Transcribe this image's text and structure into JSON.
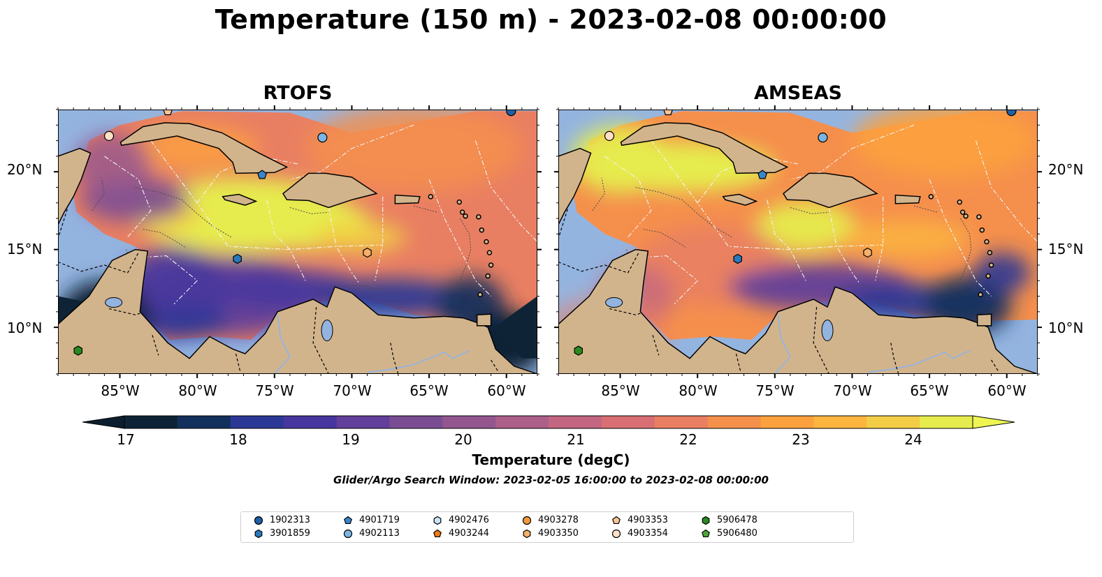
{
  "title": "Temperature (150 m) - 2023-02-08 00:00:00",
  "panels": [
    {
      "id": "rtofs",
      "title": "RTOFS"
    },
    {
      "id": "amseas",
      "title": "AMSEAS"
    }
  ],
  "map_extent": {
    "lon": [
      -89,
      -58
    ],
    "lat": [
      7,
      24
    ]
  },
  "x_ticks": [
    "85°W",
    "80°W",
    "75°W",
    "70°W",
    "65°W",
    "60°W"
  ],
  "y_ticks": [
    "20°N",
    "15°N",
    "10°N"
  ],
  "colorbar": {
    "label": "Temperature (degC)",
    "ticks": [
      "17",
      "18",
      "19",
      "20",
      "21",
      "22",
      "23",
      "24"
    ],
    "range": [
      16.75,
      24.75
    ],
    "extend": "both",
    "colors": [
      "#0e2436",
      "#13305c",
      "#2c3895",
      "#46369e",
      "#613f9a",
      "#7a4d93",
      "#93568f",
      "#ac5f89",
      "#c36681",
      "#d86f74",
      "#e97f62",
      "#f58f4c",
      "#fca13e",
      "#fcb53f",
      "#f2cd45",
      "#e6ec4e"
    ]
  },
  "subtitle": "Glider/Argo Search Window: 2023-02-05 16:00:00 to 2023-02-08 00:00:00",
  "legend": {
    "items": [
      {
        "label": "1902313",
        "marker": "circle",
        "color": "#1f5fa8"
      },
      {
        "label": "3901859",
        "marker": "hexagon",
        "color": "#2b79bd"
      },
      {
        "label": "4901719",
        "marker": "pentagon",
        "color": "#3a86c8"
      },
      {
        "label": "4902113",
        "marker": "circle",
        "color": "#7ab5e3"
      },
      {
        "label": "4902476",
        "marker": "hexagon",
        "color": "#c9e6f7"
      },
      {
        "label": "4903244",
        "marker": "pentagon",
        "color": "#f07a10"
      },
      {
        "label": "4903278",
        "marker": "circle",
        "color": "#f39a3e"
      },
      {
        "label": "4903350",
        "marker": "hexagon",
        "color": "#f7b06a"
      },
      {
        "label": "4903353",
        "marker": "pentagon",
        "color": "#f9c496"
      },
      {
        "label": "4903354",
        "marker": "circle",
        "color": "#fde0c6"
      },
      {
        "label": "5906478",
        "marker": "hexagon",
        "color": "#2a8a22"
      },
      {
        "label": "5906480",
        "marker": "pentagon",
        "color": "#4aa83a"
      }
    ]
  },
  "float_markers": [
    {
      "label": "1902313",
      "lon": -59.7,
      "lat": 23.9
    },
    {
      "label": "4902113",
      "lon": -71.9,
      "lat": 22.2
    },
    {
      "label": "4901719",
      "lon": -75.8,
      "lat": 19.8
    },
    {
      "label": "3901859",
      "lon": -77.4,
      "lat": 14.4
    },
    {
      "label": "4903350",
      "lon": -69.0,
      "lat": 14.8
    },
    {
      "label": "4903354",
      "lon": -85.7,
      "lat": 22.3
    },
    {
      "label": "4903353",
      "lon": -81.9,
      "lat": 23.9
    },
    {
      "label": "5906478",
      "lon": -87.7,
      "lat": 8.5
    }
  ]
}
